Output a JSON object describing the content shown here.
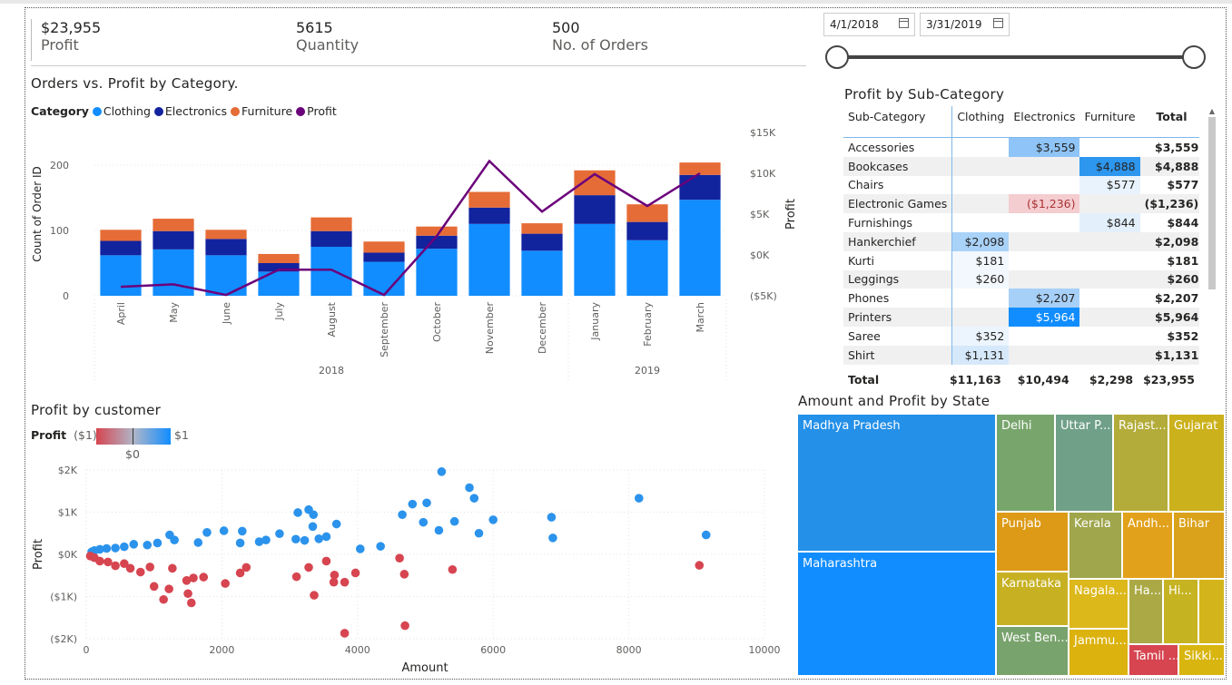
{
  "kpis": [
    {
      "value": "$23,955",
      "label": "Profit"
    },
    {
      "value": "5615",
      "label": "Quantity"
    },
    {
      "value": "500",
      "label": "No. of Orders"
    }
  ],
  "date_range": {
    "start": "4/1/2018",
    "end": "3/31/2019"
  },
  "colors": {
    "clothing": "#118DFF",
    "electronics": "#12239E",
    "furniture": "#E66C37",
    "profit": "#6B007B"
  },
  "combo_chart": {
    "title": "Orders vs. Profit by Category.",
    "legend_title": "Category",
    "legend": [
      "Clothing",
      "Electronics",
      "Furniture",
      "Profit"
    ],
    "y_left_label": "Count of Order ID",
    "y_right_label": "Profit",
    "y_left_ticks": [
      "200",
      "100",
      "0"
    ],
    "y_right_ticks": [
      "$15K",
      "$10K",
      "$5K",
      "$0K",
      "($5K)"
    ],
    "years": [
      "2018",
      "2019"
    ]
  },
  "chart_data": [
    {
      "type": "bar",
      "title": "Orders vs. Profit by Category.",
      "categories": [
        "April",
        "May",
        "June",
        "July",
        "August",
        "September",
        "October",
        "November",
        "December",
        "January",
        "February",
        "March"
      ],
      "series": [
        {
          "name": "Clothing",
          "values": [
            62,
            71,
            62,
            37,
            75,
            52,
            72,
            110,
            69,
            110,
            85,
            147
          ]
        },
        {
          "name": "Electronics",
          "values": [
            22,
            28,
            25,
            13,
            24,
            14,
            20,
            25,
            26,
            44,
            28,
            38
          ]
        },
        {
          "name": "Furniture",
          "values": [
            17,
            19,
            14,
            14,
            21,
            17,
            14,
            24,
            16,
            38,
            27,
            19
          ]
        },
        {
          "name": "Profit",
          "values": [
            -3900,
            -3600,
            -4900,
            -1800,
            -1800,
            -4900,
            2300,
            11500,
            5300,
            9900,
            6000,
            10000
          ]
        }
      ],
      "ylim": [
        0,
        250
      ],
      "y2lim": [
        -5000,
        15000
      ]
    },
    {
      "type": "scatter",
      "title": "Profit by customer",
      "xlabel": "Amount",
      "ylabel": "Profit",
      "xlim": [
        0,
        10000
      ],
      "ylim": [
        -2000,
        2000
      ],
      "x_ticks": [
        "0",
        "2000",
        "4000",
        "6000",
        "8000",
        "10000"
      ],
      "y_ticks": [
        "$2K",
        "$1K",
        "$0K",
        "($1K)",
        "($2K)"
      ],
      "points": [
        [
          5240,
          1960
        ],
        [
          5650,
          1580
        ],
        [
          5720,
          1330
        ],
        [
          4660,
          940
        ],
        [
          4810,
          1190
        ],
        [
          5020,
          1220
        ],
        [
          4970,
          760
        ],
        [
          5430,
          780
        ],
        [
          6000,
          820
        ],
        [
          6860,
          880
        ],
        [
          6880,
          390
        ],
        [
          8150,
          1330
        ],
        [
          9140,
          460
        ],
        [
          5200,
          570
        ],
        [
          5790,
          500
        ],
        [
          4340,
          190
        ],
        [
          4040,
          130
        ],
        [
          3280,
          1060
        ],
        [
          3350,
          940
        ],
        [
          3120,
          990
        ],
        [
          3340,
          660
        ],
        [
          3690,
          720
        ],
        [
          3540,
          420
        ],
        [
          3430,
          370
        ],
        [
          3220,
          330
        ],
        [
          3090,
          360
        ],
        [
          2850,
          490
        ],
        [
          2650,
          340
        ],
        [
          2550,
          300
        ],
        [
          2300,
          550
        ],
        [
          2270,
          270
        ],
        [
          2030,
          560
        ],
        [
          1780,
          520
        ],
        [
          1650,
          280
        ],
        [
          1300,
          340
        ],
        [
          1230,
          460
        ],
        [
          1050,
          270
        ],
        [
          900,
          220
        ],
        [
          700,
          240
        ],
        [
          560,
          180
        ],
        [
          430,
          150
        ],
        [
          300,
          140
        ],
        [
          200,
          120
        ],
        [
          120,
          90
        ],
        [
          80,
          60
        ],
        [
          60,
          -40
        ],
        [
          3810,
          -1870
        ],
        [
          4700,
          -1690
        ],
        [
          9040,
          -260
        ],
        [
          5400,
          -360
        ],
        [
          4620,
          -90
        ],
        [
          4690,
          -470
        ],
        [
          3540,
          -160
        ],
        [
          3660,
          -490
        ],
        [
          3650,
          -660
        ],
        [
          3280,
          -310
        ],
        [
          3360,
          -970
        ],
        [
          3810,
          -660
        ],
        [
          3970,
          -440
        ],
        [
          3100,
          -530
        ],
        [
          2360,
          -310
        ],
        [
          2270,
          -440
        ],
        [
          2050,
          -690
        ],
        [
          1730,
          -540
        ],
        [
          1580,
          -560
        ],
        [
          1550,
          -1150
        ],
        [
          1500,
          -930
        ],
        [
          1480,
          -620
        ],
        [
          1270,
          -330
        ],
        [
          1220,
          -820
        ],
        [
          1140,
          -1070
        ],
        [
          1000,
          -760
        ],
        [
          940,
          -300
        ],
        [
          800,
          -420
        ],
        [
          650,
          -330
        ],
        [
          560,
          -220
        ],
        [
          430,
          -270
        ],
        [
          320,
          -180
        ],
        [
          200,
          -160
        ],
        [
          120,
          -80
        ]
      ]
    },
    {
      "type": "table",
      "title": "Profit by Sub-Category",
      "columns": [
        "Sub-Category",
        "Clothing",
        "Electronics",
        "Furniture",
        "Total"
      ],
      "rows": [
        [
          "Accessories",
          "",
          "$3,559",
          "",
          "$3,559"
        ],
        [
          "Bookcases",
          "",
          "",
          "$4,888",
          "$4,888"
        ],
        [
          "Chairs",
          "",
          "",
          "$577",
          "$577"
        ],
        [
          "Electronic Games",
          "",
          "($1,236)",
          "",
          "($1,236)"
        ],
        [
          "Furnishings",
          "",
          "",
          "$844",
          "$844"
        ],
        [
          "Hankerchief",
          "$2,098",
          "",
          "",
          "$2,098"
        ],
        [
          "Kurti",
          "$181",
          "",
          "",
          "$181"
        ],
        [
          "Leggings",
          "$260",
          "",
          "",
          "$260"
        ],
        [
          "Phones",
          "",
          "$2,207",
          "",
          "$2,207"
        ],
        [
          "Printers",
          "",
          "$5,964",
          "",
          "$5,964"
        ],
        [
          "Saree",
          "$352",
          "",
          "",
          "$352"
        ],
        [
          "Shirt",
          "$1,131",
          "",
          "",
          "$1,131"
        ]
      ],
      "totals": [
        "Total",
        "$11,163",
        "$10,494",
        "$2,298",
        "$23,955"
      ]
    }
  ],
  "scatter_legend": {
    "title": "Profit",
    "min": "($1)",
    "max": "$1",
    "mid": "$0"
  },
  "treemap": {
    "title": "Amount and Profit by State",
    "tiles": [
      {
        "label": "Madhya Pradesh",
        "color": "#2490E8"
      },
      {
        "label": "Maharashtra",
        "color": "#118DFF"
      },
      {
        "label": "Delhi",
        "color": "#78A56C"
      },
      {
        "label": "Uttar P...",
        "color": "#70A088"
      },
      {
        "label": "Rajast...",
        "color": "#B3AC3A"
      },
      {
        "label": "Gujarat",
        "color": "#CBB11C"
      },
      {
        "label": "Punjab",
        "color": "#DC9A16"
      },
      {
        "label": "Kerala",
        "color": "#9FA64C"
      },
      {
        "label": "Andh...",
        "color": "#E2A11A"
      },
      {
        "label": "Bihar",
        "color": "#D9A21A"
      },
      {
        "label": "Karnataka",
        "color": "#C7B123"
      },
      {
        "label": "Nagala...",
        "color": "#DCB81B"
      },
      {
        "label": "Ha...",
        "color": "#AAA945"
      },
      {
        "label": "Hi...",
        "color": "#C6B321"
      },
      {
        "label": "West Ben...",
        "color": "#79A36D"
      },
      {
        "label": "Jammu...",
        "color": "#DCB20F"
      },
      {
        "label": "Tamil ...",
        "color": "#D64550"
      },
      {
        "label": "Sikki...",
        "color": "#D9B510"
      }
    ]
  }
}
